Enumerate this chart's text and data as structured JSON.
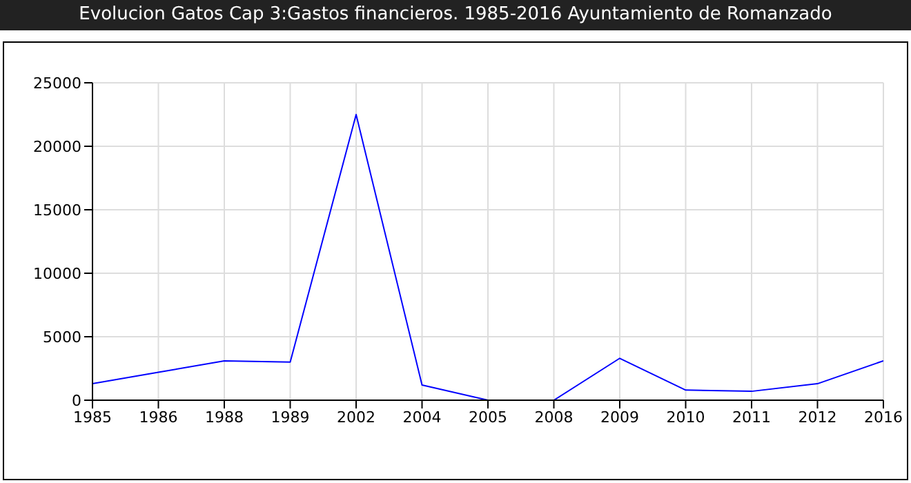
{
  "chart_data": {
    "type": "line",
    "title": "Evolucion Gatos Cap 3:Gastos financieros. 1985-2016 Ayuntamiento de Romanzado",
    "categories": [
      "1985",
      "1986",
      "1988",
      "1989",
      "2002",
      "2004",
      "2005",
      "2008",
      "2009",
      "2010",
      "2011",
      "2012",
      "2016"
    ],
    "series": [
      {
        "color": "#0000ff",
        "values": [
          1300,
          2200,
          3100,
          3000,
          22500,
          1200,
          0,
          0,
          3300,
          800,
          700,
          1300,
          3100
        ]
      }
    ],
    "ylim": [
      0,
      25000
    ],
    "yticks": [
      0,
      5000,
      10000,
      15000,
      20000,
      25000
    ],
    "grid": true,
    "marker": "none",
    "line_style": "solid"
  }
}
